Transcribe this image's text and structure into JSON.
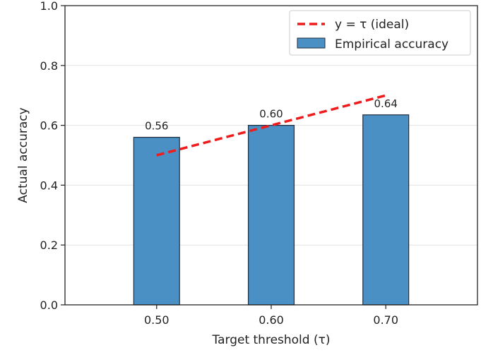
{
  "chart_data": {
    "type": "bar",
    "categories": [
      "0.50",
      "0.60",
      "0.70"
    ],
    "x": [
      0.5,
      0.6,
      0.7
    ],
    "series": [
      {
        "name": "Empirical accuracy",
        "kind": "bar",
        "values": [
          0.56,
          0.6,
          0.635
        ],
        "data_labels": [
          "0.56",
          "0.60",
          "0.64"
        ],
        "color": "#4a90c4"
      },
      {
        "name": "y = τ (ideal)",
        "kind": "line",
        "style": "dashed",
        "values": [
          0.5,
          0.6,
          0.7
        ],
        "color": "#ee1c1c"
      }
    ],
    "xlabel": "Target threshold (τ)",
    "ylabel": "Actual accuracy",
    "ylim": [
      0,
      1.0
    ],
    "yticks": [
      "0.0",
      "0.2",
      "0.4",
      "0.6",
      "0.8",
      "1.0"
    ],
    "grid": "horizontal",
    "legend_position": "top-right"
  }
}
